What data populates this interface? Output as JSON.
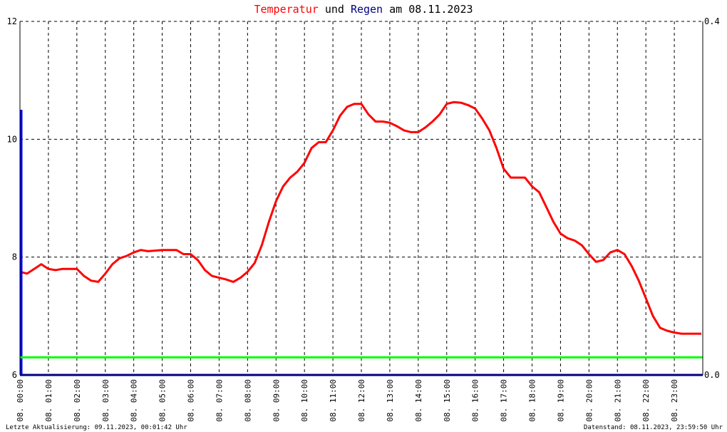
{
  "header": {
    "title_part1": "Temperatur",
    "title_part2": "und",
    "title_part3": "Regen",
    "title_part4": "am 08.11.2023",
    "color_temperature": "#ff0000",
    "color_rain": "#000080"
  },
  "footer": {
    "left": "Letzte Aktualisierung: 09.11.2023, 00:01:42 Uhr",
    "right": "Datenstand: 08.11.2023, 23:59:50 Uhr"
  },
  "chart_data": {
    "type": "line",
    "x_unit": "hours",
    "xlim": [
      0,
      24
    ],
    "ylim_left": [
      6,
      12
    ],
    "ylim_right": [
      0.0,
      0.4
    ],
    "yticks_left": [
      "12",
      "10",
      "8",
      "6"
    ],
    "yticks_right": [
      "0.4",
      "0.0"
    ],
    "xticks": [
      "08. 00:00",
      "08. 01:00",
      "08. 02:00",
      "08. 03:00",
      "08. 04:00",
      "08. 05:00",
      "08. 06:00",
      "08. 07:00",
      "08. 08:00",
      "08. 09:00",
      "08. 10:00",
      "08. 11:00",
      "08. 12:00",
      "08. 13:00",
      "08. 14:00",
      "08. 15:00",
      "08. 16:00",
      "08. 17:00",
      "08. 18:00",
      "08. 19:00",
      "08. 20:00",
      "08. 21:00",
      "08. 22:00",
      "08. 23:00"
    ],
    "grid": true,
    "series": [
      {
        "name": "Temperatur",
        "color": "#ff0000",
        "axis": "left",
        "x": [
          0,
          0.25,
          0.5,
          0.75,
          1,
          1.25,
          1.5,
          2,
          2.25,
          2.5,
          2.75,
          3,
          3.25,
          3.5,
          3.75,
          4,
          4.25,
          4.5,
          5,
          5.5,
          5.75,
          6,
          6.25,
          6.5,
          6.75,
          7,
          7.25,
          7.5,
          7.75,
          8,
          8.25,
          8.5,
          8.75,
          9,
          9.25,
          9.5,
          9.75,
          10,
          10.25,
          10.5,
          10.75,
          11,
          11.25,
          11.5,
          11.75,
          12,
          12.25,
          12.5,
          12.75,
          13,
          13.25,
          13.5,
          13.75,
          14,
          14.25,
          14.5,
          14.75,
          15,
          15.25,
          15.5,
          15.75,
          16,
          16.25,
          16.5,
          16.75,
          17,
          17.25,
          17.5,
          17.75,
          18,
          18.25,
          18.5,
          18.75,
          19,
          19.25,
          19.5,
          19.75,
          20,
          20.25,
          20.5,
          20.75,
          21,
          21.25,
          21.5,
          21.75,
          22,
          22.25,
          22.5,
          22.75,
          23,
          23.25,
          23.5,
          23.75,
          23.95
        ],
        "y": [
          7.75,
          7.72,
          7.8,
          7.88,
          7.8,
          7.78,
          7.8,
          7.8,
          7.68,
          7.6,
          7.58,
          7.72,
          7.88,
          7.98,
          8.02,
          8.08,
          8.12,
          8.1,
          8.12,
          8.12,
          8.05,
          8.05,
          7.95,
          7.78,
          7.68,
          7.65,
          7.62,
          7.58,
          7.65,
          7.75,
          7.9,
          8.2,
          8.6,
          8.95,
          9.2,
          9.35,
          9.45,
          9.6,
          9.85,
          9.95,
          9.95,
          10.15,
          10.4,
          10.55,
          10.6,
          10.6,
          10.42,
          10.3,
          10.3,
          10.28,
          10.22,
          10.15,
          10.12,
          10.12,
          10.2,
          10.3,
          10.42,
          10.6,
          10.63,
          10.62,
          10.58,
          10.52,
          10.35,
          10.15,
          9.85,
          9.5,
          9.35,
          9.35,
          9.35,
          9.2,
          9.1,
          8.85,
          8.6,
          8.4,
          8.32,
          8.28,
          8.2,
          8.05,
          7.92,
          7.95,
          8.08,
          8.12,
          8.05,
          7.85,
          7.6,
          7.3,
          7.0,
          6.8,
          6.75,
          6.72,
          6.7,
          6.7,
          6.7,
          6.7
        ]
      },
      {
        "name": "Regen",
        "color": "#0000ff",
        "axis": "right",
        "x": [
          0.05,
          0.05
        ],
        "y": [
          0.0,
          0.3
        ]
      },
      {
        "name": "",
        "color": "#00ff00",
        "axis": "left",
        "x": [
          0,
          24
        ],
        "y": [
          6.3,
          6.3
        ]
      }
    ]
  }
}
